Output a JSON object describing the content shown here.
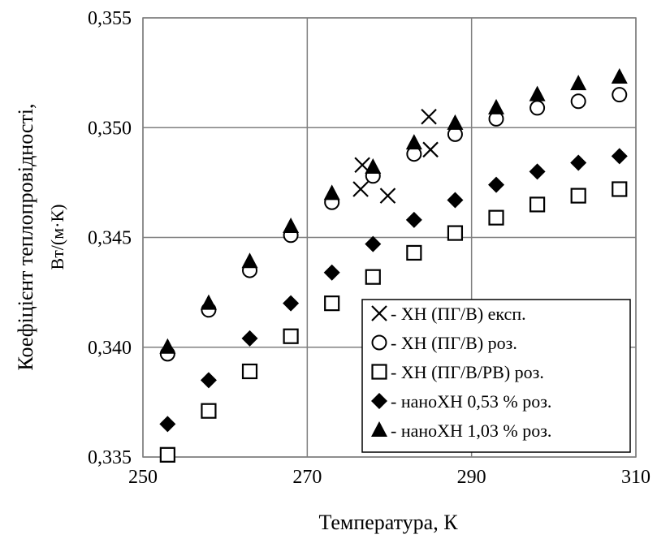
{
  "chart_data": {
    "type": "scatter",
    "xlabel": "Температура, К",
    "ylabel_line1": "Коефіцієнт теплопровідності,",
    "ylabel_line2": "Вт/(м·К)",
    "xlim": [
      250,
      310
    ],
    "ylim": [
      0.335,
      0.355
    ],
    "x_ticks": [
      {
        "value": 250,
        "label": "250"
      },
      {
        "value": 270,
        "label": "270"
      },
      {
        "value": 290,
        "label": "290"
      },
      {
        "value": 310,
        "label": "310"
      }
    ],
    "y_ticks": [
      {
        "value": 0.335,
        "label": "0,335"
      },
      {
        "value": 0.34,
        "label": "0,340"
      },
      {
        "value": 0.345,
        "label": "0,345"
      },
      {
        "value": 0.35,
        "label": "0,350"
      },
      {
        "value": 0.355,
        "label": "0,355"
      }
    ],
    "grid": true,
    "legend_position": "bottom-right",
    "series": [
      {
        "name": "- ХН (ПГ/В) експ.",
        "marker": "cross",
        "color": "#000000",
        "points": [
          [
            276.5,
            0.3472
          ],
          [
            276.7,
            0.3483
          ],
          [
            279.8,
            0.3469
          ],
          [
            284.8,
            0.3505
          ],
          [
            285.0,
            0.349
          ]
        ]
      },
      {
        "name": "- ХН (ПГ/В) роз.",
        "marker": "circle-open",
        "color": "#000000",
        "points": [
          [
            253,
            0.3397
          ],
          [
            258,
            0.3417
          ],
          [
            263,
            0.3435
          ],
          [
            268,
            0.3451
          ],
          [
            273,
            0.3466
          ],
          [
            278,
            0.3478
          ],
          [
            283,
            0.3488
          ],
          [
            288,
            0.3497
          ],
          [
            293,
            0.3504
          ],
          [
            298,
            0.3509
          ],
          [
            303,
            0.3512
          ],
          [
            308,
            0.3515
          ]
        ]
      },
      {
        "name": "- ХН (ПГ/В/РВ) роз.",
        "marker": "square-open",
        "color": "#000000",
        "points": [
          [
            253,
            0.3351
          ],
          [
            258,
            0.3371
          ],
          [
            263,
            0.3389
          ],
          [
            268,
            0.3405
          ],
          [
            273,
            0.342
          ],
          [
            278,
            0.3432
          ],
          [
            283,
            0.3443
          ],
          [
            288,
            0.3452
          ],
          [
            293,
            0.3459
          ],
          [
            298,
            0.3465
          ],
          [
            303,
            0.3469
          ],
          [
            308,
            0.3472
          ]
        ]
      },
      {
        "name": "- наноХН 0,53 % роз.",
        "marker": "diamond",
        "color": "#000000",
        "points": [
          [
            253,
            0.3365
          ],
          [
            258,
            0.3385
          ],
          [
            263,
            0.3404
          ],
          [
            268,
            0.342
          ],
          [
            273,
            0.3434
          ],
          [
            278,
            0.3447
          ],
          [
            283,
            0.3458
          ],
          [
            288,
            0.3467
          ],
          [
            293,
            0.3474
          ],
          [
            298,
            0.348
          ],
          [
            303,
            0.3484
          ],
          [
            308,
            0.3487
          ]
        ]
      },
      {
        "name": "- наноХН 1,03 % роз.",
        "marker": "triangle",
        "color": "#000000",
        "points": [
          [
            253,
            0.34
          ],
          [
            258,
            0.342
          ],
          [
            263,
            0.3439
          ],
          [
            268,
            0.3455
          ],
          [
            273,
            0.347
          ],
          [
            278,
            0.3482
          ],
          [
            283,
            0.3493
          ],
          [
            288,
            0.3502
          ],
          [
            293,
            0.3509
          ],
          [
            298,
            0.3515
          ],
          [
            303,
            0.352
          ],
          [
            308,
            0.3523
          ]
        ]
      }
    ]
  }
}
